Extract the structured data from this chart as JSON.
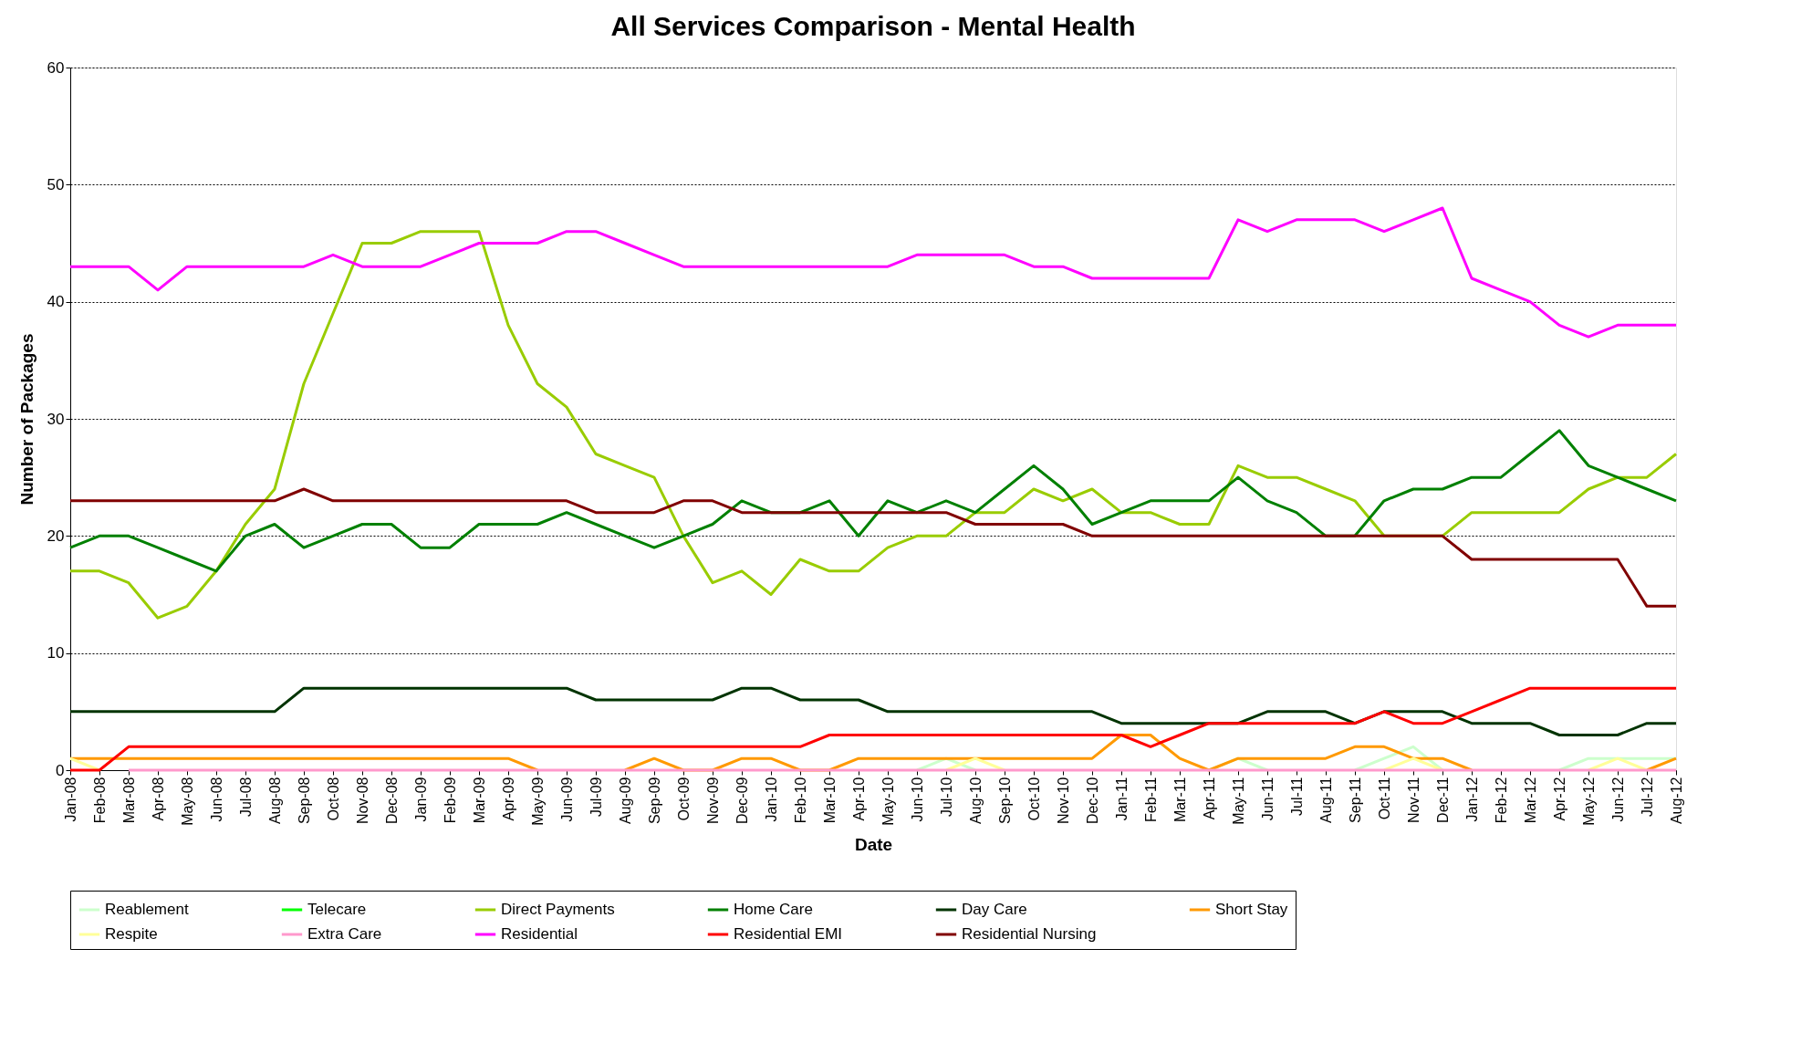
{
  "chart_data": {
    "type": "line",
    "title": "All Services Comparison - Mental Health",
    "xlabel": "Date",
    "ylabel": "Number of Packages",
    "categories": [
      "Jan-08",
      "Feb-08",
      "Mar-08",
      "Apr-08",
      "May-08",
      "Jun-08",
      "Jul-08",
      "Aug-08",
      "Sep-08",
      "Oct-08",
      "Nov-08",
      "Dec-08",
      "Jan-09",
      "Feb-09",
      "Mar-09",
      "Apr-09",
      "May-09",
      "Jun-09",
      "Jul-09",
      "Aug-09",
      "Sep-09",
      "Oct-09",
      "Nov-09",
      "Dec-09",
      "Jan-10",
      "Feb-10",
      "Mar-10",
      "Apr-10",
      "May-10",
      "Jun-10",
      "Jul-10",
      "Aug-10",
      "Sep-10",
      "Oct-10",
      "Nov-10",
      "Dec-10",
      "Jan-11",
      "Feb-11",
      "Mar-11",
      "Apr-11",
      "May-11",
      "Jun-11",
      "Jul-11",
      "Aug-11",
      "Sep-11",
      "Oct-11",
      "Nov-11",
      "Dec-11",
      "Jan-12",
      "Feb-12",
      "Mar-12",
      "Apr-12",
      "May-12",
      "Jun-12",
      "Jul-12",
      "Aug-12"
    ],
    "ylim": [
      0,
      60
    ],
    "yticks": [
      0,
      10,
      20,
      30,
      40,
      50,
      60
    ],
    "grid": "y",
    "legend": "bottom",
    "series": [
      {
        "name": "Reablement",
        "color": "#ccffcc",
        "values": [
          null,
          null,
          null,
          null,
          null,
          null,
          null,
          null,
          null,
          null,
          null,
          null,
          null,
          null,
          null,
          null,
          null,
          null,
          null,
          null,
          null,
          null,
          null,
          null,
          null,
          null,
          null,
          null,
          null,
          0,
          1,
          0,
          null,
          null,
          null,
          null,
          null,
          null,
          null,
          0,
          1,
          0,
          null,
          null,
          0,
          1,
          2,
          0,
          null,
          null,
          null,
          0,
          1,
          1,
          1,
          1
        ]
      },
      {
        "name": "Telecare",
        "color": "#00ff00",
        "values": [
          null,
          null,
          null,
          null,
          null,
          null,
          null,
          null,
          null,
          null,
          null,
          null,
          null,
          null,
          null,
          null,
          null,
          null,
          null,
          null,
          null,
          null,
          null,
          null,
          null,
          null,
          null,
          null,
          null,
          null,
          null,
          null,
          null,
          null,
          null,
          null,
          null,
          null,
          null,
          null,
          null,
          null,
          null,
          null,
          null,
          null,
          null,
          null,
          null,
          null,
          null,
          null,
          null,
          null,
          null,
          null
        ]
      },
      {
        "name": "Direct Payments",
        "color": "#99cc00",
        "values": [
          17,
          17,
          16,
          13,
          14,
          17,
          21,
          24,
          33,
          39,
          45,
          45,
          46,
          46,
          46,
          38,
          33,
          31,
          27,
          26,
          25,
          20,
          16,
          17,
          15,
          18,
          17,
          17,
          19,
          20,
          20,
          22,
          22,
          24,
          23,
          24,
          22,
          22,
          21,
          21,
          26,
          25,
          25,
          24,
          23,
          20,
          20,
          20,
          22,
          22,
          22,
          22,
          24,
          25,
          25,
          27
        ]
      },
      {
        "name": "Home Care",
        "color": "#008000",
        "values": [
          19,
          20,
          20,
          19,
          18,
          17,
          20,
          21,
          19,
          20,
          21,
          21,
          19,
          19,
          21,
          21,
          21,
          22,
          21,
          20,
          19,
          20,
          21,
          23,
          22,
          22,
          23,
          20,
          23,
          22,
          23,
          22,
          24,
          26,
          24,
          21,
          22,
          23,
          23,
          23,
          25,
          23,
          22,
          20,
          20,
          23,
          24,
          24,
          25,
          25,
          27,
          29,
          26,
          25,
          24,
          23
        ]
      },
      {
        "name": "Day Care",
        "color": "#003300",
        "values": [
          5,
          5,
          5,
          5,
          5,
          5,
          5,
          5,
          7,
          7,
          7,
          7,
          7,
          7,
          7,
          7,
          7,
          7,
          6,
          6,
          6,
          6,
          6,
          7,
          7,
          6,
          6,
          6,
          5,
          5,
          5,
          5,
          5,
          5,
          5,
          5,
          4,
          4,
          4,
          4,
          4,
          5,
          5,
          5,
          4,
          5,
          5,
          5,
          4,
          4,
          4,
          3,
          3,
          3,
          4,
          4
        ]
      },
      {
        "name": "Short Stay",
        "color": "#ff9900",
        "values": [
          1,
          1,
          1,
          1,
          1,
          1,
          1,
          1,
          1,
          1,
          1,
          1,
          1,
          1,
          1,
          1,
          0,
          null,
          null,
          0,
          1,
          0,
          0,
          1,
          1,
          0,
          0,
          1,
          1,
          1,
          1,
          1,
          1,
          1,
          1,
          1,
          3,
          3,
          1,
          0,
          1,
          1,
          1,
          1,
          2,
          2,
          1,
          1,
          0,
          null,
          null,
          null,
          null,
          null,
          0,
          1
        ]
      },
      {
        "name": "Respite",
        "color": "#ffff99",
        "values": [
          1,
          0,
          null,
          null,
          null,
          null,
          null,
          null,
          null,
          null,
          null,
          null,
          null,
          null,
          null,
          null,
          null,
          null,
          null,
          null,
          null,
          null,
          null,
          null,
          null,
          null,
          null,
          null,
          null,
          null,
          0,
          1,
          0,
          null,
          null,
          null,
          null,
          null,
          null,
          null,
          null,
          null,
          null,
          null,
          null,
          0,
          1,
          0,
          null,
          null,
          null,
          null,
          0,
          1,
          0,
          null
        ]
      },
      {
        "name": "Extra Care",
        "color": "#ff99cc",
        "values": [
          null,
          null,
          0,
          0,
          0,
          0,
          0,
          0,
          0,
          0,
          0,
          0,
          0,
          0,
          0,
          0,
          0,
          0,
          0,
          0,
          0,
          0,
          0,
          0,
          0,
          0,
          0,
          0,
          0,
          0,
          0,
          0,
          0,
          0,
          0,
          0,
          0,
          0,
          0,
          0,
          0,
          0,
          0,
          0,
          0,
          0,
          0,
          0,
          0,
          0,
          0,
          0,
          0,
          0,
          0,
          0
        ]
      },
      {
        "name": "Residential",
        "color": "#ff00ff",
        "values": [
          43,
          43,
          43,
          41,
          43,
          43,
          43,
          43,
          43,
          44,
          43,
          43,
          43,
          44,
          45,
          45,
          45,
          46,
          46,
          45,
          44,
          43,
          43,
          43,
          43,
          43,
          43,
          43,
          43,
          44,
          44,
          44,
          44,
          43,
          43,
          42,
          42,
          42,
          42,
          42,
          47,
          46,
          47,
          47,
          47,
          46,
          47,
          48,
          42,
          41,
          40,
          38,
          37,
          38,
          38,
          38
        ]
      },
      {
        "name": "Residential EMI",
        "color": "#ff0000",
        "values": [
          0,
          0,
          2,
          2,
          2,
          2,
          2,
          2,
          2,
          2,
          2,
          2,
          2,
          2,
          2,
          2,
          2,
          2,
          2,
          2,
          2,
          2,
          2,
          2,
          2,
          2,
          3,
          3,
          3,
          3,
          3,
          3,
          3,
          3,
          3,
          3,
          3,
          2,
          3,
          4,
          4,
          4,
          4,
          4,
          4,
          5,
          4,
          4,
          5,
          6,
          7,
          7,
          7,
          7,
          7,
          7
        ]
      },
      {
        "name": "Residential Nursing",
        "color": "#800000",
        "values": [
          23,
          23,
          23,
          23,
          23,
          23,
          23,
          23,
          24,
          23,
          23,
          23,
          23,
          23,
          23,
          23,
          23,
          23,
          22,
          22,
          22,
          23,
          23,
          22,
          22,
          22,
          22,
          22,
          22,
          22,
          22,
          21,
          21,
          21,
          21,
          20,
          20,
          20,
          20,
          20,
          20,
          20,
          20,
          20,
          20,
          20,
          20,
          20,
          18,
          18,
          18,
          18,
          18,
          18,
          14,
          14
        ]
      }
    ]
  }
}
